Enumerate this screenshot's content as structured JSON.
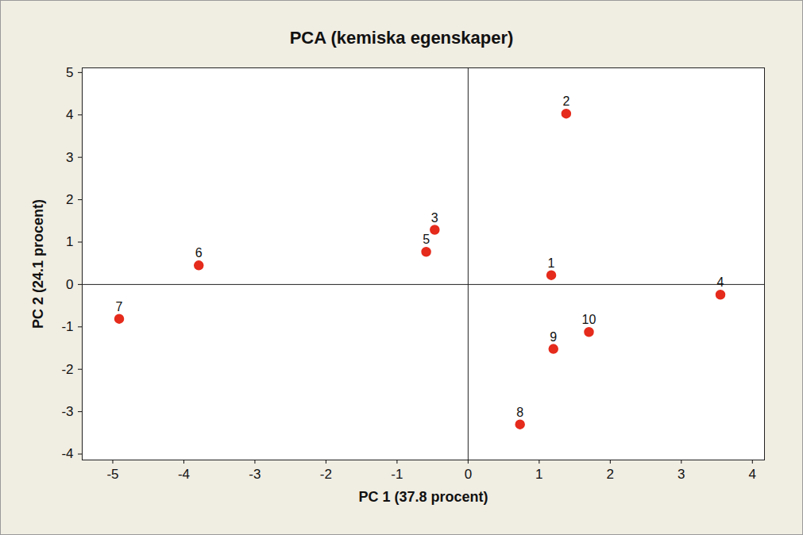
{
  "chart_data": {
    "type": "scatter",
    "title": "PCA (kemiska egenskaper)",
    "x_label": "PC 1 (37.8 procent)",
    "y_label": "PC 2 (24.1 procent)",
    "point_labels": [
      "1",
      "2",
      "3",
      "4",
      "5",
      "6",
      "7",
      "8",
      "9",
      "10"
    ],
    "x": [
      1.17,
      1.38,
      -0.47,
      3.55,
      -0.59,
      -3.79,
      -4.91,
      0.73,
      1.2,
      1.7
    ],
    "y": [
      0.22,
      4.03,
      1.29,
      -0.24,
      0.77,
      0.45,
      -0.81,
      -3.3,
      -1.52,
      -1.12
    ],
    "color": "#e52b1c",
    "marker": "circle",
    "xlim": [
      -5.43,
      4.17
    ],
    "ylim": [
      -4.14,
      5.11
    ],
    "xticks": [
      -5,
      -4,
      -3,
      -2,
      -1,
      0,
      1,
      2,
      3,
      4
    ],
    "yticks": [
      -4,
      -3,
      -2,
      -1,
      0,
      1,
      2,
      3,
      4,
      5
    ]
  }
}
